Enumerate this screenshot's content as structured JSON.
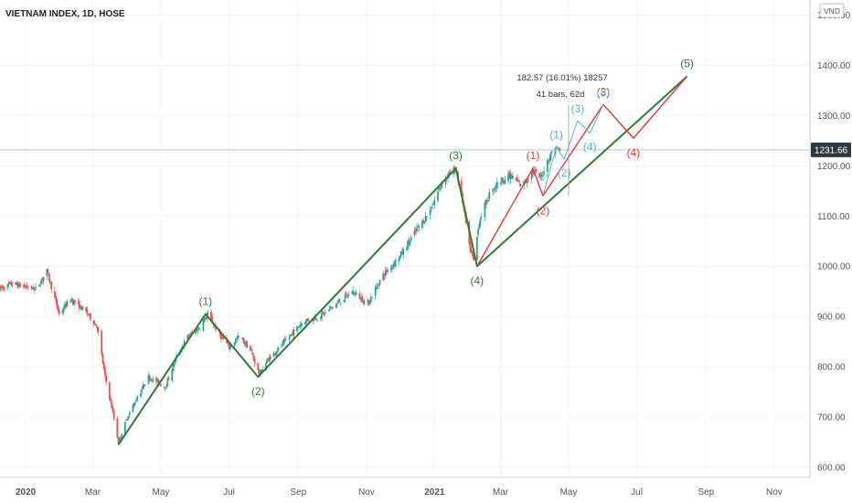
{
  "chart_data": {
    "type": "candlestick",
    "title": "VIETNAM INDEX, 1D, HOSE",
    "currency": "VND",
    "current_price": "1231.66",
    "ylim": [
      580,
      1530
    ],
    "xlim": [
      "2019-12-09",
      "2021-12-03"
    ],
    "y_ticks": [
      {
        "value": 600,
        "label": "600.00"
      },
      {
        "value": 700,
        "label": "700.00"
      },
      {
        "value": 800,
        "label": "800.00"
      },
      {
        "value": 900,
        "label": "900.00"
      },
      {
        "value": 1000,
        "label": "1000.00"
      },
      {
        "value": 1100,
        "label": "1100.00"
      },
      {
        "value": 1200,
        "label": "1200.00"
      },
      {
        "value": 1300,
        "label": "1300.00"
      },
      {
        "value": 1400,
        "label": "1400.00"
      },
      {
        "value": 1500,
        "label": "1500.00"
      }
    ],
    "x_ticks": [
      {
        "date": "2020-01-01",
        "label": "2020",
        "bold": true
      },
      {
        "date": "2020-03-01",
        "label": "Mar"
      },
      {
        "date": "2020-05-01",
        "label": "May"
      },
      {
        "date": "2020-07-01",
        "label": "Jul"
      },
      {
        "date": "2020-09-01",
        "label": "Sep"
      },
      {
        "date": "2020-11-01",
        "label": "Nov"
      },
      {
        "date": "2021-01-01",
        "label": "2021",
        "bold": true
      },
      {
        "date": "2021-03-01",
        "label": "Mar"
      },
      {
        "date": "2021-05-01",
        "label": "May"
      },
      {
        "date": "2021-07-01",
        "label": "Jul"
      },
      {
        "date": "2021-09-01",
        "label": "Sep"
      },
      {
        "date": "2021-11-01",
        "label": "Nov"
      }
    ],
    "price_path": [
      [
        "2019-12-09",
        955
      ],
      [
        "2019-12-20",
        965
      ],
      [
        "2020-01-10",
        955
      ],
      [
        "2020-01-20",
        990
      ],
      [
        "2020-01-31",
        905
      ],
      [
        "2020-02-10",
        935
      ],
      [
        "2020-02-24",
        910
      ],
      [
        "2020-03-05",
        880
      ],
      [
        "2020-03-12",
        780
      ],
      [
        "2020-03-18",
        720
      ],
      [
        "2020-03-24",
        650
      ],
      [
        "2020-04-01",
        700
      ],
      [
        "2020-04-10",
        740
      ],
      [
        "2020-04-20",
        780
      ],
      [
        "2020-05-05",
        760
      ],
      [
        "2020-05-15",
        820
      ],
      [
        "2020-05-25",
        860
      ],
      [
        "2020-06-05",
        880
      ],
      [
        "2020-06-12",
        905
      ],
      [
        "2020-06-22",
        865
      ],
      [
        "2020-07-01",
        840
      ],
      [
        "2020-07-10",
        860
      ],
      [
        "2020-07-20",
        835
      ],
      [
        "2020-07-28",
        785
      ],
      [
        "2020-08-05",
        815
      ],
      [
        "2020-08-20",
        850
      ],
      [
        "2020-09-05",
        890
      ],
      [
        "2020-09-20",
        900
      ],
      [
        "2020-10-05",
        925
      ],
      [
        "2020-10-20",
        950
      ],
      [
        "2020-11-02",
        925
      ],
      [
        "2020-11-15",
        980
      ],
      [
        "2020-12-01",
        1020
      ],
      [
        "2020-12-15",
        1070
      ],
      [
        "2020-12-28",
        1110
      ],
      [
        "2021-01-08",
        1170
      ],
      [
        "2021-01-20",
        1195
      ],
      [
        "2021-01-26",
        1130
      ],
      [
        "2021-02-01",
        1040
      ],
      [
        "2021-02-05",
        1010
      ],
      [
        "2021-02-10",
        1090
      ],
      [
        "2021-02-20",
        1150
      ],
      [
        "2021-03-01",
        1170
      ],
      [
        "2021-03-10",
        1180
      ],
      [
        "2021-03-20",
        1160
      ],
      [
        "2021-03-30",
        1190
      ],
      [
        "2021-04-06",
        1175
      ],
      [
        "2021-04-12",
        1210
      ],
      [
        "2021-04-19",
        1238
      ],
      [
        "2021-04-23",
        1231
      ]
    ],
    "projection_line": {
      "date": "2021-04-23",
      "value": 1231.66
    },
    "green_waves": {
      "color": "#2e7d32",
      "points": [
        {
          "date": "2020-03-24",
          "value": 645,
          "label": ""
        },
        {
          "date": "2020-06-10",
          "value": 905,
          "label": "(1)"
        },
        {
          "date": "2020-07-27",
          "value": 780,
          "label": "(2)"
        },
        {
          "date": "2021-01-20",
          "value": 1195,
          "label": "(3)"
        },
        {
          "date": "2021-02-08",
          "value": 1000,
          "label": "(4)"
        },
        {
          "date": "2021-08-15",
          "value": 1378,
          "label": "(5)"
        }
      ]
    },
    "red_waves": {
      "color": "#e53935",
      "points": [
        {
          "date": "2021-02-08",
          "value": 1000,
          "label": ""
        },
        {
          "date": "2021-03-30",
          "value": 1195,
          "label": "(1)"
        },
        {
          "date": "2021-04-08",
          "value": 1140,
          "label": "(2)"
        },
        {
          "date": "2021-06-01",
          "value": 1322,
          "label": "(3)"
        },
        {
          "date": "2021-06-28",
          "value": 1255,
          "label": "(4)"
        },
        {
          "date": "2021-08-15",
          "value": 1378,
          "label": ""
        }
      ]
    },
    "blue_waves": {
      "color": "#4fb3d9",
      "points": [
        {
          "date": "2021-04-08",
          "value": 1140,
          "label": ""
        },
        {
          "date": "2021-04-20",
          "value": 1238,
          "label": "(1)"
        },
        {
          "date": "2021-04-27",
          "value": 1213,
          "label": "(2)"
        },
        {
          "date": "2021-05-09",
          "value": 1290,
          "label": "(3)"
        },
        {
          "date": "2021-05-20",
          "value": 1265,
          "label": "(4)"
        },
        {
          "date": "2021-06-01",
          "value": 1322,
          "label": "(5)"
        }
      ]
    },
    "measure_annotation": {
      "line1": "182.57 (16.01%) 18257",
      "line2": "41 bars, 62d",
      "date": "2021-05-01",
      "value_top": 1322,
      "value_bottom": 1140
    }
  }
}
